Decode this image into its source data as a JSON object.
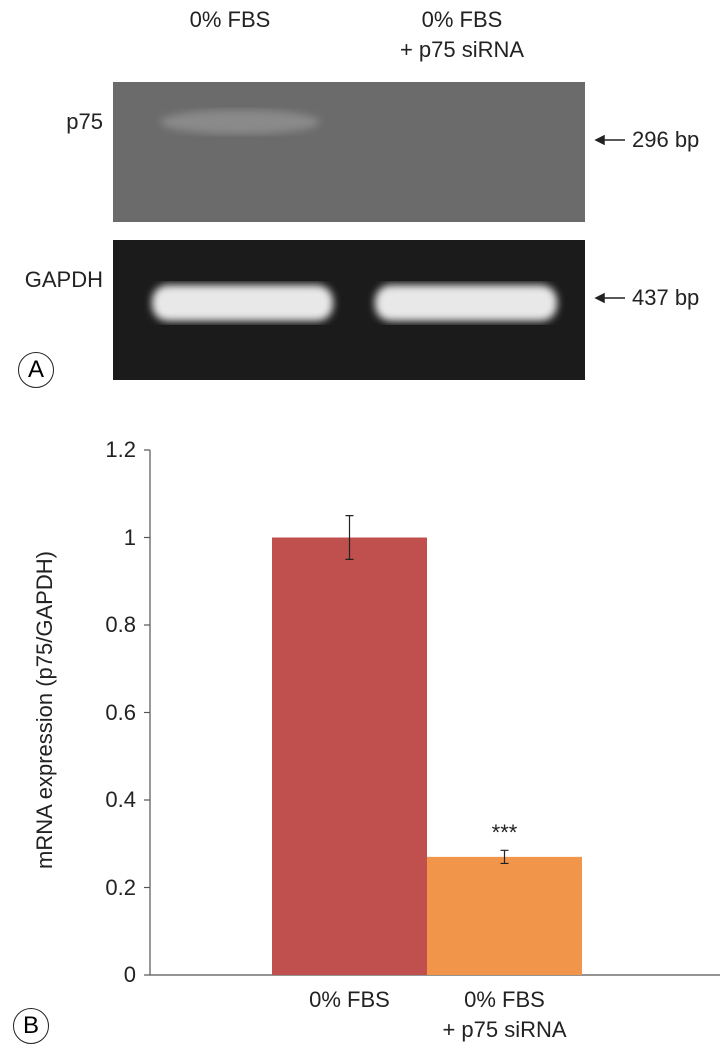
{
  "gel": {
    "panel_label": "A",
    "lanes": [
      "0% FBS",
      "0% FBS\n+ p75 siRNA"
    ],
    "rows": [
      {
        "label": "p75",
        "size": "296 bp"
      },
      {
        "label": "GAPDH",
        "size": "437 bp"
      }
    ]
  },
  "chart_data": {
    "type": "bar",
    "panel_label": "B",
    "y_label": "mRNA expression (p75/GAPDH)",
    "categories": [
      "0% FBS",
      "0% FBS\n+ p75 siRNA"
    ],
    "values": [
      1.0,
      0.27
    ],
    "errors": [
      0.05,
      0.015
    ],
    "colors": [
      "#c0504d",
      "#f0954a"
    ],
    "significance_labels": [
      null,
      "***"
    ],
    "ylim": [
      0,
      1.2
    ],
    "yticks": [
      0,
      0.2,
      0.4,
      0.6,
      0.8,
      1,
      1.2
    ],
    "grid": false
  }
}
